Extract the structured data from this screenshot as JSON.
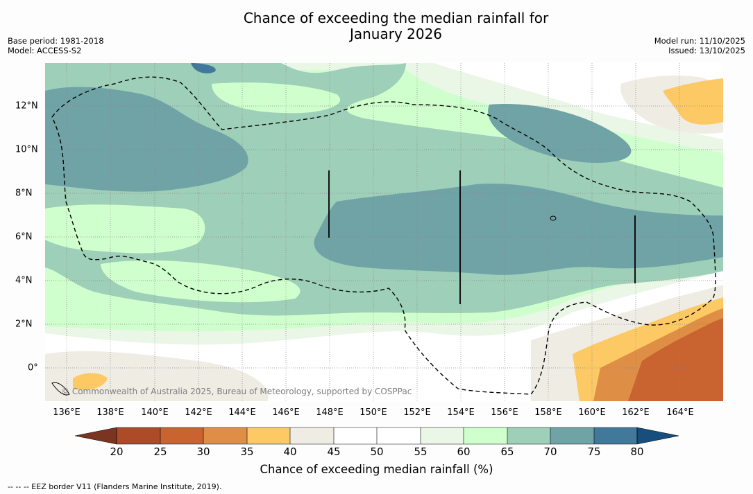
{
  "header": {
    "title_line1": "Chance of exceeding the median rainfall for",
    "title_line2": "January 2026",
    "base_period": "Base period: 1981-2018",
    "model": "Model: ACCESS-S2",
    "model_run": "Model run: 11/10/2025",
    "issued": "Issued: 13/10/2025"
  },
  "map": {
    "copyright": "© Commonwealth of Australia 2025, Bureau of Meteorology, supported by COSPPac",
    "lon_ticks": [
      "136°E",
      "138°E",
      "140°E",
      "142°E",
      "144°E",
      "146°E",
      "148°E",
      "150°E",
      "152°E",
      "154°E",
      "156°E",
      "158°E",
      "160°E",
      "162°E",
      "164°E"
    ],
    "lat_ticks": [
      "12°N",
      "10°N",
      "8°N",
      "6°N",
      "4°N",
      "2°N",
      "0°"
    ],
    "legend_note": "-- -- -- EEZ border V11 (Flanders Marine Institute, 2019)."
  },
  "colorbar": {
    "label": "Chance of exceeding median rainfall (%)",
    "ticks": [
      "20",
      "25",
      "30",
      "35",
      "40",
      "45",
      "50",
      "55",
      "60",
      "65",
      "70",
      "75",
      "80"
    ],
    "colors": [
      "#7a3420",
      "#ad4a28",
      "#c9632f",
      "#de8f45",
      "#fdc964",
      "#efece4",
      "#ffffff",
      "#ffffff",
      "#eaf6e6",
      "#cfffcc",
      "#9ecfb8",
      "#6fa3a6",
      "#427899",
      "#174e7e"
    ]
  }
}
